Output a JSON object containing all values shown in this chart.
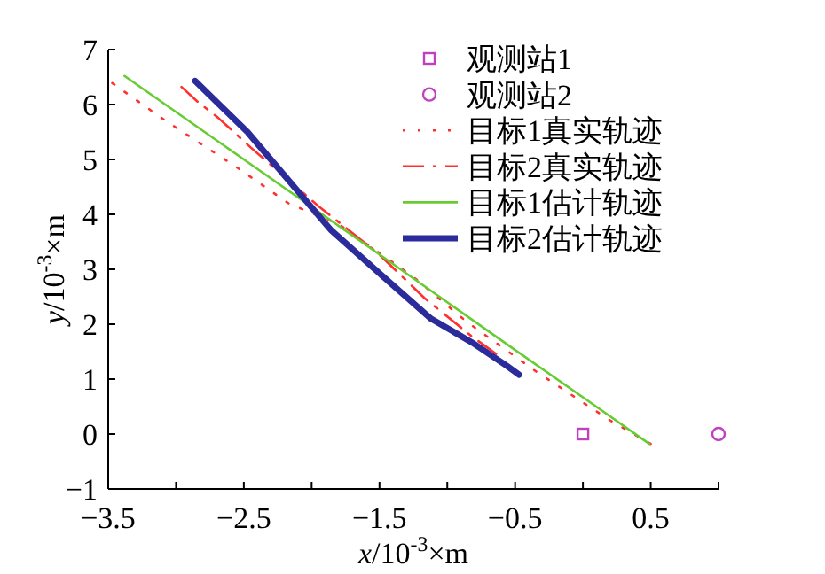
{
  "chart_data": {
    "type": "line",
    "xlabel": "*x*/10$^{-3}$×m",
    "ylabel": "*y*/10$^{-3}$×m",
    "xlim": [
      -3.5,
      1.0
    ],
    "ylim": [
      -1,
      7
    ],
    "xticks": [
      -3.5,
      {
        "value": -3.0,
        "label": null
      },
      -2.5,
      {
        "value": -2.0,
        "label": null
      },
      -1.5,
      {
        "value": -1.0,
        "label": null
      },
      -0.5,
      {
        "value": 0.0,
        "label": null
      },
      0.5,
      {
        "value": 1.0,
        "label": null
      }
    ],
    "yticks": [
      -1,
      0,
      1,
      2,
      3,
      4,
      5,
      6,
      7
    ],
    "legend": "top right",
    "grid": false,
    "series": [
      {
        "name": "观测站1",
        "type": "scatter",
        "marker": "square",
        "color": "#c040c0",
        "x": [
          0.0
        ],
        "values": [
          0
        ]
      },
      {
        "name": "观测站2",
        "type": "scatter",
        "marker": "circle",
        "color": "#c040c0",
        "x": [
          1.0
        ],
        "values": [
          0
        ]
      },
      {
        "name": "目标1真实轨迹",
        "type": "line",
        "line_style": "dotted",
        "color": "#ff3030",
        "x": [
          -3.47,
          -3.08,
          -2.56,
          -2.17,
          -1.8,
          -1.25,
          -0.86,
          -0.34,
          0.2,
          0.5
        ],
        "values": [
          6.39,
          5.71,
          4.87,
          4.2,
          3.82,
          2.86,
          2.05,
          1.13,
          0.25,
          -0.18
        ]
      },
      {
        "name": "目标2真实轨迹",
        "type": "line",
        "line_style": "dashed",
        "color": "#ff3030",
        "x": [
          -2.96,
          -2.84,
          -2.69,
          -2.45,
          -1.95,
          -1.51,
          -1.17,
          -0.82,
          -0.64
        ],
        "values": [
          6.32,
          6.05,
          5.76,
          5.22,
          4.15,
          3.29,
          2.48,
          1.78,
          1.46
        ]
      },
      {
        "name": "目标1估计轨迹",
        "type": "line",
        "line_style": "solid",
        "color": "#66cc33",
        "x": [
          -3.38,
          -2.5,
          -1.5,
          -1.0,
          -0.5,
          0.0,
          0.49
        ],
        "values": [
          6.52,
          5.0,
          3.27,
          2.4,
          1.53,
          0.67,
          -0.18
        ]
      },
      {
        "name": "目标2估计轨迹",
        "type": "line",
        "line_style": "solid",
        "color": "#2b2b9b",
        "x": [
          -2.86,
          -2.47,
          -2.08,
          -1.86,
          -1.47,
          -1.12,
          -0.82,
          -0.56,
          -0.47
        ],
        "values": [
          6.43,
          5.49,
          4.36,
          3.72,
          2.86,
          2.1,
          1.67,
          1.24,
          1.08
        ]
      }
    ]
  }
}
